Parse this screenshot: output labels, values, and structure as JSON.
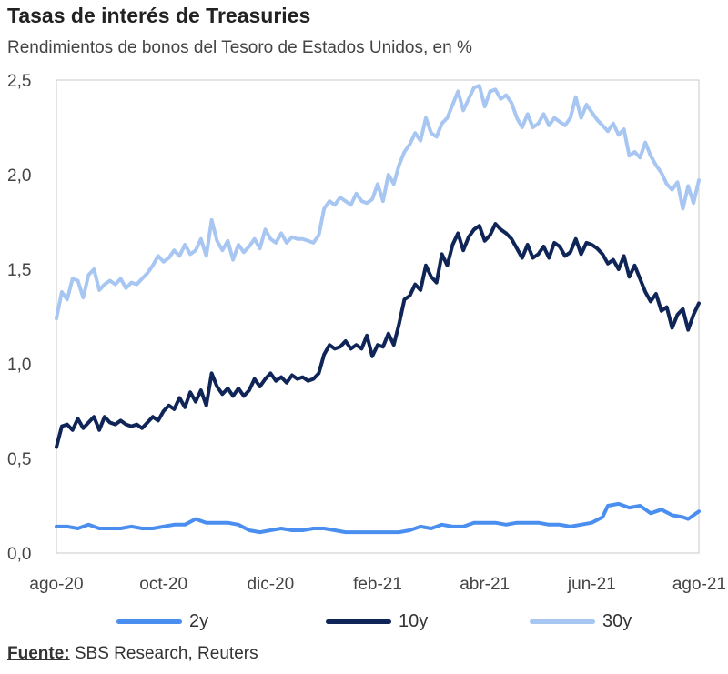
{
  "chart_data": {
    "type": "line",
    "title": "Tasas de interés de Treasuries",
    "subtitle": "Rendimientos de bonos del Tesoro de Estados Unidos, en %",
    "xlabel": "",
    "ylabel": "",
    "ylim": [
      0,
      2.5
    ],
    "y_ticks": [
      "0,0",
      "0,5",
      "1,0",
      "1,5",
      "2,0",
      "2,5"
    ],
    "y_tick_values": [
      0,
      0.5,
      1.0,
      1.5,
      2.0,
      2.5
    ],
    "x_ticks": [
      "ago-20",
      "oct-20",
      "dic-20",
      "feb-21",
      "abr-21",
      "jun-21",
      "ago-21"
    ],
    "x_range_months": [
      0,
      12
    ],
    "series": [
      {
        "name": "2y",
        "color": "#4a8ff0",
        "points": [
          [
            0,
            0.14
          ],
          [
            0.2,
            0.14
          ],
          [
            0.4,
            0.13
          ],
          [
            0.6,
            0.15
          ],
          [
            0.8,
            0.13
          ],
          [
            1.0,
            0.13
          ],
          [
            1.2,
            0.13
          ],
          [
            1.4,
            0.14
          ],
          [
            1.6,
            0.13
          ],
          [
            1.8,
            0.13
          ],
          [
            2.0,
            0.14
          ],
          [
            2.2,
            0.15
          ],
          [
            2.4,
            0.15
          ],
          [
            2.6,
            0.18
          ],
          [
            2.8,
            0.16
          ],
          [
            3.0,
            0.16
          ],
          [
            3.2,
            0.16
          ],
          [
            3.4,
            0.15
          ],
          [
            3.6,
            0.12
          ],
          [
            3.8,
            0.11
          ],
          [
            4.0,
            0.12
          ],
          [
            4.2,
            0.13
          ],
          [
            4.4,
            0.12
          ],
          [
            4.6,
            0.12
          ],
          [
            4.8,
            0.13
          ],
          [
            5.0,
            0.13
          ],
          [
            5.2,
            0.12
          ],
          [
            5.4,
            0.11
          ],
          [
            5.6,
            0.11
          ],
          [
            5.8,
            0.11
          ],
          [
            6.0,
            0.11
          ],
          [
            6.2,
            0.11
          ],
          [
            6.4,
            0.11
          ],
          [
            6.6,
            0.12
          ],
          [
            6.8,
            0.14
          ],
          [
            7.0,
            0.13
          ],
          [
            7.2,
            0.15
          ],
          [
            7.4,
            0.14
          ],
          [
            7.6,
            0.14
          ],
          [
            7.8,
            0.16
          ],
          [
            8.0,
            0.16
          ],
          [
            8.2,
            0.16
          ],
          [
            8.4,
            0.15
          ],
          [
            8.6,
            0.16
          ],
          [
            8.8,
            0.16
          ],
          [
            9.0,
            0.16
          ],
          [
            9.2,
            0.15
          ],
          [
            9.4,
            0.15
          ],
          [
            9.6,
            0.14
          ],
          [
            9.8,
            0.15
          ],
          [
            10.0,
            0.16
          ],
          [
            10.2,
            0.19
          ],
          [
            10.3,
            0.25
          ],
          [
            10.5,
            0.26
          ],
          [
            10.7,
            0.24
          ],
          [
            10.9,
            0.25
          ],
          [
            11.1,
            0.21
          ],
          [
            11.3,
            0.23
          ],
          [
            11.5,
            0.2
          ],
          [
            11.7,
            0.19
          ],
          [
            11.8,
            0.18
          ],
          [
            11.9,
            0.2
          ],
          [
            12.0,
            0.22
          ]
        ]
      },
      {
        "name": "10y",
        "color": "#0f2557",
        "points": [
          [
            0,
            0.56
          ],
          [
            0.1,
            0.67
          ],
          [
            0.2,
            0.68
          ],
          [
            0.3,
            0.65
          ],
          [
            0.4,
            0.71
          ],
          [
            0.5,
            0.66
          ],
          [
            0.6,
            0.69
          ],
          [
            0.7,
            0.72
          ],
          [
            0.8,
            0.65
          ],
          [
            0.9,
            0.72
          ],
          [
            1.0,
            0.69
          ],
          [
            1.1,
            0.68
          ],
          [
            1.2,
            0.7
          ],
          [
            1.3,
            0.68
          ],
          [
            1.4,
            0.67
          ],
          [
            1.5,
            0.68
          ],
          [
            1.6,
            0.66
          ],
          [
            1.7,
            0.69
          ],
          [
            1.8,
            0.72
          ],
          [
            1.9,
            0.7
          ],
          [
            2.0,
            0.75
          ],
          [
            2.1,
            0.78
          ],
          [
            2.2,
            0.76
          ],
          [
            2.3,
            0.82
          ],
          [
            2.4,
            0.77
          ],
          [
            2.5,
            0.85
          ],
          [
            2.6,
            0.8
          ],
          [
            2.7,
            0.86
          ],
          [
            2.8,
            0.78
          ],
          [
            2.9,
            0.95
          ],
          [
            3.0,
            0.88
          ],
          [
            3.1,
            0.84
          ],
          [
            3.2,
            0.87
          ],
          [
            3.3,
            0.83
          ],
          [
            3.4,
            0.87
          ],
          [
            3.5,
            0.83
          ],
          [
            3.6,
            0.86
          ],
          [
            3.7,
            0.92
          ],
          [
            3.8,
            0.88
          ],
          [
            3.9,
            0.92
          ],
          [
            4.0,
            0.95
          ],
          [
            4.1,
            0.91
          ],
          [
            4.2,
            0.93
          ],
          [
            4.3,
            0.9
          ],
          [
            4.4,
            0.94
          ],
          [
            4.5,
            0.92
          ],
          [
            4.6,
            0.93
          ],
          [
            4.7,
            0.91
          ],
          [
            4.8,
            0.92
          ],
          [
            4.9,
            0.95
          ],
          [
            5.0,
            1.05
          ],
          [
            5.1,
            1.1
          ],
          [
            5.2,
            1.08
          ],
          [
            5.3,
            1.09
          ],
          [
            5.4,
            1.12
          ],
          [
            5.5,
            1.08
          ],
          [
            5.6,
            1.1
          ],
          [
            5.7,
            1.08
          ],
          [
            5.8,
            1.15
          ],
          [
            5.9,
            1.04
          ],
          [
            6.0,
            1.1
          ],
          [
            6.1,
            1.09
          ],
          [
            6.2,
            1.16
          ],
          [
            6.3,
            1.1
          ],
          [
            6.4,
            1.21
          ],
          [
            6.5,
            1.34
          ],
          [
            6.6,
            1.36
          ],
          [
            6.7,
            1.42
          ],
          [
            6.8,
            1.39
          ],
          [
            6.9,
            1.52
          ],
          [
            7.0,
            1.46
          ],
          [
            7.1,
            1.43
          ],
          [
            7.2,
            1.58
          ],
          [
            7.3,
            1.52
          ],
          [
            7.4,
            1.63
          ],
          [
            7.5,
            1.69
          ],
          [
            7.6,
            1.6
          ],
          [
            7.7,
            1.67
          ],
          [
            7.8,
            1.71
          ],
          [
            7.9,
            1.73
          ],
          [
            8.0,
            1.65
          ],
          [
            8.1,
            1.68
          ],
          [
            8.2,
            1.74
          ],
          [
            8.3,
            1.71
          ],
          [
            8.4,
            1.69
          ],
          [
            8.5,
            1.66
          ],
          [
            8.6,
            1.61
          ],
          [
            8.7,
            1.56
          ],
          [
            8.8,
            1.63
          ],
          [
            8.9,
            1.56
          ],
          [
            9.0,
            1.58
          ],
          [
            9.1,
            1.62
          ],
          [
            9.2,
            1.56
          ],
          [
            9.3,
            1.64
          ],
          [
            9.4,
            1.62
          ],
          [
            9.5,
            1.57
          ],
          [
            9.6,
            1.59
          ],
          [
            9.7,
            1.66
          ],
          [
            9.8,
            1.58
          ],
          [
            9.9,
            1.64
          ],
          [
            10.0,
            1.63
          ],
          [
            10.1,
            1.61
          ],
          [
            10.2,
            1.58
          ],
          [
            10.3,
            1.53
          ],
          [
            10.4,
            1.55
          ],
          [
            10.5,
            1.5
          ],
          [
            10.6,
            1.57
          ],
          [
            10.7,
            1.46
          ],
          [
            10.8,
            1.52
          ],
          [
            10.9,
            1.45
          ],
          [
            11.0,
            1.38
          ],
          [
            11.1,
            1.33
          ],
          [
            11.2,
            1.37
          ],
          [
            11.3,
            1.28
          ],
          [
            11.4,
            1.3
          ],
          [
            11.5,
            1.19
          ],
          [
            11.6,
            1.26
          ],
          [
            11.7,
            1.29
          ],
          [
            11.8,
            1.18
          ],
          [
            11.9,
            1.26
          ],
          [
            12.0,
            1.32
          ]
        ]
      },
      {
        "name": "30y",
        "color": "#a8c6f2",
        "points": [
          [
            0,
            1.24
          ],
          [
            0.1,
            1.38
          ],
          [
            0.2,
            1.34
          ],
          [
            0.3,
            1.45
          ],
          [
            0.4,
            1.44
          ],
          [
            0.5,
            1.35
          ],
          [
            0.6,
            1.47
          ],
          [
            0.7,
            1.5
          ],
          [
            0.8,
            1.39
          ],
          [
            0.9,
            1.42
          ],
          [
            1.0,
            1.44
          ],
          [
            1.1,
            1.42
          ],
          [
            1.2,
            1.45
          ],
          [
            1.3,
            1.4
          ],
          [
            1.4,
            1.43
          ],
          [
            1.5,
            1.42
          ],
          [
            1.6,
            1.45
          ],
          [
            1.7,
            1.48
          ],
          [
            1.8,
            1.52
          ],
          [
            1.9,
            1.57
          ],
          [
            2.0,
            1.54
          ],
          [
            2.1,
            1.56
          ],
          [
            2.2,
            1.6
          ],
          [
            2.3,
            1.57
          ],
          [
            2.4,
            1.63
          ],
          [
            2.5,
            1.58
          ],
          [
            2.6,
            1.6
          ],
          [
            2.7,
            1.66
          ],
          [
            2.8,
            1.57
          ],
          [
            2.9,
            1.76
          ],
          [
            3.0,
            1.65
          ],
          [
            3.1,
            1.6
          ],
          [
            3.2,
            1.65
          ],
          [
            3.3,
            1.55
          ],
          [
            3.4,
            1.63
          ],
          [
            3.5,
            1.59
          ],
          [
            3.6,
            1.62
          ],
          [
            3.7,
            1.66
          ],
          [
            3.8,
            1.61
          ],
          [
            3.9,
            1.71
          ],
          [
            4.0,
            1.66
          ],
          [
            4.1,
            1.64
          ],
          [
            4.2,
            1.69
          ],
          [
            4.3,
            1.64
          ],
          [
            4.4,
            1.67
          ],
          [
            4.5,
            1.66
          ],
          [
            4.6,
            1.66
          ],
          [
            4.7,
            1.65
          ],
          [
            4.8,
            1.64
          ],
          [
            4.9,
            1.68
          ],
          [
            5.0,
            1.82
          ],
          [
            5.1,
            1.86
          ],
          [
            5.2,
            1.84
          ],
          [
            5.3,
            1.88
          ],
          [
            5.4,
            1.86
          ],
          [
            5.5,
            1.84
          ],
          [
            5.6,
            1.9
          ],
          [
            5.7,
            1.86
          ],
          [
            5.8,
            1.85
          ],
          [
            5.9,
            1.87
          ],
          [
            6.0,
            1.95
          ],
          [
            6.1,
            1.86
          ],
          [
            6.2,
            2.0
          ],
          [
            6.3,
            1.95
          ],
          [
            6.4,
            2.05
          ],
          [
            6.5,
            2.12
          ],
          [
            6.6,
            2.16
          ],
          [
            6.7,
            2.22
          ],
          [
            6.8,
            2.18
          ],
          [
            6.9,
            2.3
          ],
          [
            7.0,
            2.22
          ],
          [
            7.1,
            2.2
          ],
          [
            7.2,
            2.27
          ],
          [
            7.3,
            2.3
          ],
          [
            7.4,
            2.37
          ],
          [
            7.5,
            2.44
          ],
          [
            7.6,
            2.34
          ],
          [
            7.7,
            2.4
          ],
          [
            7.8,
            2.46
          ],
          [
            7.9,
            2.47
          ],
          [
            8.0,
            2.36
          ],
          [
            8.1,
            2.44
          ],
          [
            8.2,
            2.45
          ],
          [
            8.3,
            2.4
          ],
          [
            8.4,
            2.42
          ],
          [
            8.5,
            2.38
          ],
          [
            8.6,
            2.3
          ],
          [
            8.7,
            2.25
          ],
          [
            8.8,
            2.32
          ],
          [
            8.9,
            2.25
          ],
          [
            9.0,
            2.27
          ],
          [
            9.1,
            2.32
          ],
          [
            9.2,
            2.26
          ],
          [
            9.3,
            2.3
          ],
          [
            9.4,
            2.28
          ],
          [
            9.5,
            2.26
          ],
          [
            9.6,
            2.3
          ],
          [
            9.7,
            2.41
          ],
          [
            9.8,
            2.3
          ],
          [
            9.9,
            2.37
          ],
          [
            10.0,
            2.33
          ],
          [
            10.1,
            2.29
          ],
          [
            10.2,
            2.26
          ],
          [
            10.3,
            2.23
          ],
          [
            10.4,
            2.27
          ],
          [
            10.5,
            2.21
          ],
          [
            10.6,
            2.24
          ],
          [
            10.7,
            2.1
          ],
          [
            10.8,
            2.12
          ],
          [
            10.9,
            2.09
          ],
          [
            11.0,
            2.17
          ],
          [
            11.1,
            2.1
          ],
          [
            11.2,
            2.05
          ],
          [
            11.3,
            2.01
          ],
          [
            11.4,
            1.95
          ],
          [
            11.5,
            1.92
          ],
          [
            11.6,
            1.96
          ],
          [
            11.7,
            1.82
          ],
          [
            11.8,
            1.94
          ],
          [
            11.9,
            1.85
          ],
          [
            12.0,
            1.97
          ]
        ]
      }
    ],
    "source_label": "Fuente:",
    "source_text": " SBS Research, Reuters"
  }
}
